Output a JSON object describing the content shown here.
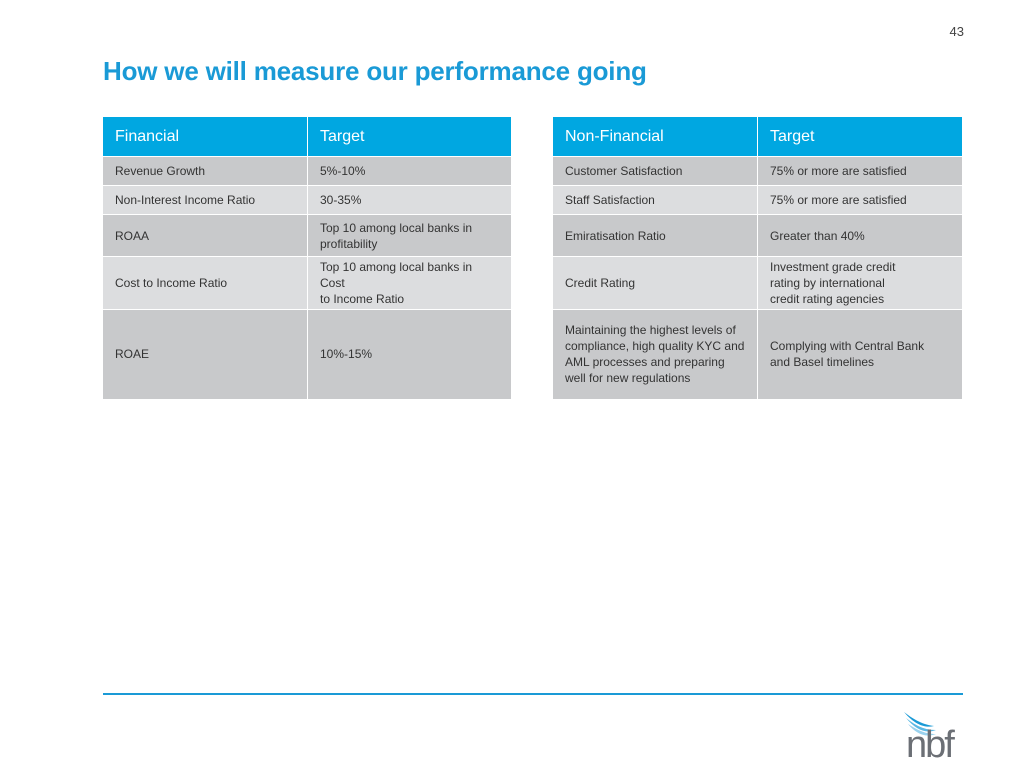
{
  "page_number": "43",
  "title": "How we will measure our performance going",
  "financial_table": {
    "headers": [
      "Financial",
      "Target"
    ],
    "rows": [
      [
        "Revenue Growth",
        "5%-10%"
      ],
      [
        "Non-Interest Income Ratio",
        "30-35%"
      ],
      [
        "ROAA",
        "Top 10 among local banks in\nprofitability"
      ],
      [
        "Cost to Income Ratio",
        "Top 10 among local banks in Cost\nto Income Ratio"
      ],
      [
        "ROAE",
        "10%-15%"
      ]
    ]
  },
  "non_financial_table": {
    "headers": [
      "Non-Financial",
      "Target"
    ],
    "rows": [
      [
        "Customer Satisfaction",
        "75% or more are satisfied"
      ],
      [
        "Staff Satisfaction",
        "75% or more are satisfied"
      ],
      [
        "Emiratisation Ratio",
        "Greater than 40%"
      ],
      [
        "Credit Rating",
        "Investment grade credit\nrating by international\ncredit rating agencies"
      ],
      [
        "Maintaining the highest levels of\ncompliance, high quality KYC and\nAML processes and preparing\nwell for new regulations",
        "Complying with Central Bank\nand Basel timelines"
      ]
    ]
  },
  "logo": {
    "text": "nbf"
  },
  "colors": {
    "accent": "#1a9ad6",
    "header_bg": "#00a7e1",
    "row_dark": "#c8c9cb",
    "row_light": "#dcdddf"
  }
}
